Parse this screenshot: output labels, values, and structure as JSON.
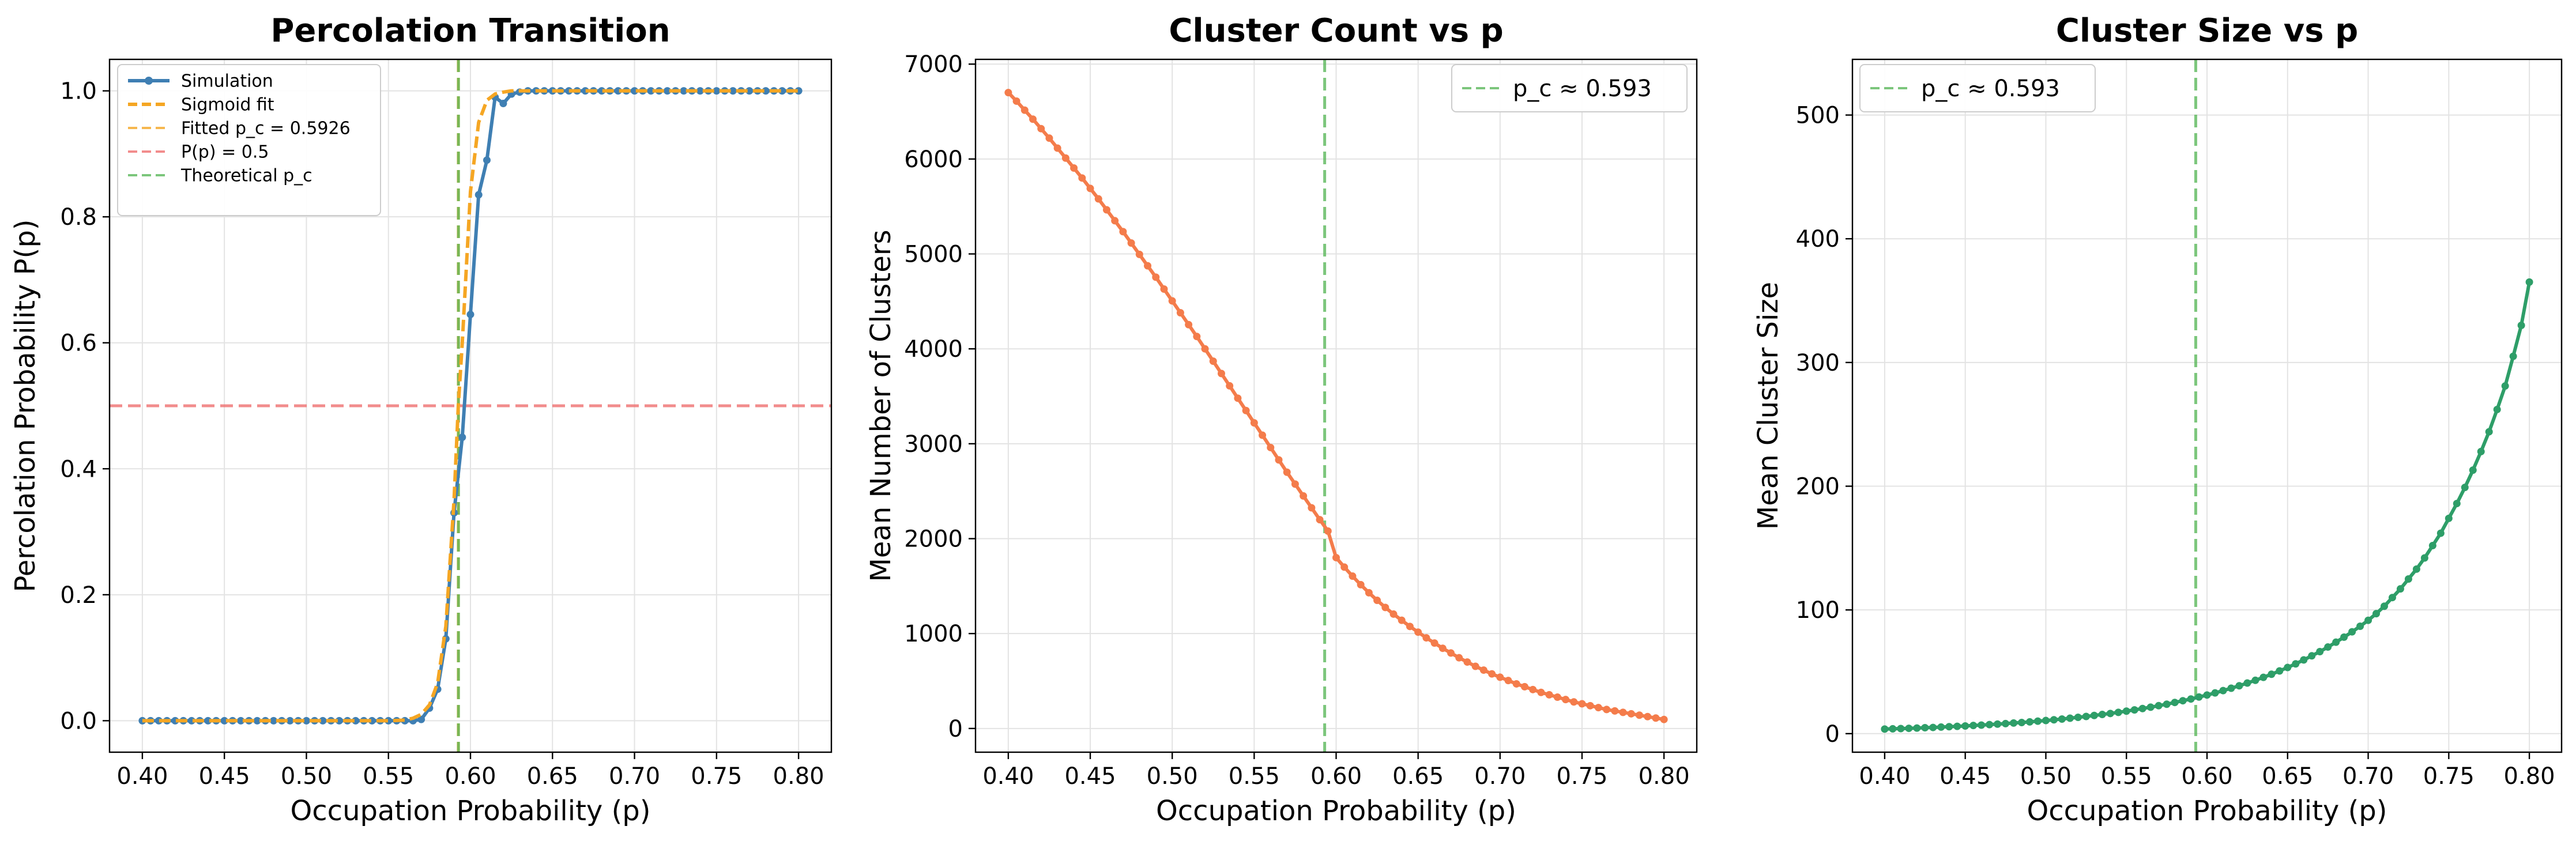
{
  "chart_data": [
    {
      "type": "line",
      "title": "Percolation Transition",
      "xlabel": "Occupation Probability (p)",
      "ylabel": "Percolation Probability P(p)",
      "xlim": [
        0.38,
        0.82
      ],
      "ylim": [
        -0.05,
        1.05
      ],
      "xticks": [
        "0.40",
        "0.45",
        "0.50",
        "0.55",
        "0.60",
        "0.65",
        "0.70",
        "0.75",
        "0.80"
      ],
      "yticks": [
        "0.0",
        "0.2",
        "0.4",
        "0.6",
        "0.8",
        "1.0"
      ],
      "grid": true,
      "legend_position": "top-left",
      "series": [
        {
          "name": "Simulation",
          "color": "#3f7fb3",
          "style": "solid-markers",
          "x": [
            0.4,
            0.405,
            0.41,
            0.415,
            0.42,
            0.425,
            0.43,
            0.435,
            0.44,
            0.445,
            0.45,
            0.455,
            0.46,
            0.465,
            0.47,
            0.475,
            0.48,
            0.485,
            0.49,
            0.495,
            0.5,
            0.505,
            0.51,
            0.515,
            0.52,
            0.525,
            0.53,
            0.535,
            0.54,
            0.545,
            0.55,
            0.555,
            0.56,
            0.565,
            0.57,
            0.575,
            0.58,
            0.585,
            0.59,
            0.595,
            0.6,
            0.605,
            0.61,
            0.615,
            0.62,
            0.625,
            0.63,
            0.635,
            0.64,
            0.645,
            0.65,
            0.655,
            0.66,
            0.665,
            0.67,
            0.675,
            0.68,
            0.685,
            0.69,
            0.695,
            0.7,
            0.705,
            0.71,
            0.715,
            0.72,
            0.725,
            0.73,
            0.735,
            0.74,
            0.745,
            0.75,
            0.755,
            0.76,
            0.765,
            0.77,
            0.775,
            0.78,
            0.785,
            0.79,
            0.795,
            0.8
          ],
          "y": [
            0,
            0,
            0,
            0,
            0,
            0,
            0,
            0,
            0,
            0,
            0,
            0,
            0,
            0,
            0,
            0,
            0,
            0,
            0,
            0,
            0,
            0,
            0,
            0,
            0,
            0,
            0,
            0,
            0,
            0,
            0,
            0,
            0,
            0,
            0.002,
            0.02,
            0.05,
            0.13,
            0.33,
            0.45,
            0.645,
            0.835,
            0.89,
            0.99,
            0.98,
            0.995,
            0.998,
            1,
            1,
            1,
            1,
            1,
            1,
            1,
            1,
            1,
            1,
            1,
            1,
            1,
            1,
            1,
            1,
            1,
            1,
            1,
            1,
            1,
            1,
            1,
            1,
            1,
            1,
            1,
            1,
            1,
            1,
            1,
            1,
            1,
            1
          ]
        },
        {
          "name": "Sigmoid fit",
          "color": "#f5a623",
          "style": "dashed",
          "x": [
            0.4,
            0.55,
            0.56,
            0.565,
            0.57,
            0.575,
            0.58,
            0.585,
            0.59,
            0.5926,
            0.595,
            0.6,
            0.605,
            0.61,
            0.615,
            0.62,
            0.625,
            0.63,
            0.64,
            0.65,
            0.8
          ],
          "y": [
            0,
            0,
            0.001,
            0.004,
            0.01,
            0.025,
            0.06,
            0.15,
            0.35,
            0.5,
            0.6,
            0.84,
            0.95,
            0.985,
            0.995,
            0.998,
            1,
            1,
            1,
            1,
            1
          ]
        }
      ],
      "reference_lines": [
        {
          "name": "Fitted p_c = 0.5926",
          "orientation": "vertical",
          "value": 0.5926,
          "color": "#f5a623"
        },
        {
          "name": "P(p) = 0.5",
          "orientation": "horizontal",
          "value": 0.5,
          "color": "#f07070"
        },
        {
          "name": "Theoretical p_c",
          "orientation": "vertical",
          "value": 0.5927,
          "color": "#5cb85c"
        }
      ]
    },
    {
      "type": "line",
      "title": "Cluster Count vs p",
      "xlabel": "Occupation Probability (p)",
      "ylabel": "Mean Number of Clusters",
      "xlim": [
        0.38,
        0.82
      ],
      "ylim": [
        -250,
        7050
      ],
      "xticks": [
        "0.40",
        "0.45",
        "0.50",
        "0.55",
        "0.60",
        "0.65",
        "0.70",
        "0.75",
        "0.80"
      ],
      "yticks": [
        "0",
        "1000",
        "2000",
        "3000",
        "4000",
        "5000",
        "6000",
        "7000"
      ],
      "grid": true,
      "legend_position": "top-right",
      "series": [
        {
          "name": "",
          "color": "#f47c4b",
          "style": "solid-markers",
          "x": [
            0.4,
            0.405,
            0.41,
            0.415,
            0.42,
            0.425,
            0.43,
            0.435,
            0.44,
            0.445,
            0.45,
            0.455,
            0.46,
            0.465,
            0.47,
            0.475,
            0.48,
            0.485,
            0.49,
            0.495,
            0.5,
            0.505,
            0.51,
            0.515,
            0.52,
            0.525,
            0.53,
            0.535,
            0.54,
            0.545,
            0.55,
            0.555,
            0.56,
            0.565,
            0.57,
            0.575,
            0.58,
            0.585,
            0.59,
            0.595,
            0.6,
            0.605,
            0.61,
            0.615,
            0.62,
            0.625,
            0.63,
            0.635,
            0.64,
            0.645,
            0.65,
            0.655,
            0.66,
            0.665,
            0.67,
            0.675,
            0.68,
            0.685,
            0.69,
            0.695,
            0.7,
            0.705,
            0.71,
            0.715,
            0.72,
            0.725,
            0.73,
            0.735,
            0.74,
            0.745,
            0.75,
            0.755,
            0.76,
            0.765,
            0.77,
            0.775,
            0.78,
            0.785,
            0.79,
            0.795,
            0.8
          ],
          "y": [
            6700,
            6610,
            6515,
            6420,
            6320,
            6220,
            6115,
            6010,
            5905,
            5800,
            5690,
            5580,
            5465,
            5350,
            5235,
            5115,
            4995,
            4875,
            4755,
            4630,
            4505,
            4380,
            4255,
            4130,
            4000,
            3870,
            3740,
            3610,
            3480,
            3350,
            3220,
            3090,
            2960,
            2830,
            2700,
            2575,
            2450,
            2325,
            2200,
            2080,
            1800,
            1700,
            1605,
            1515,
            1430,
            1350,
            1275,
            1205,
            1140,
            1075,
            1015,
            955,
            900,
            845,
            795,
            745,
            700,
            655,
            615,
            575,
            540,
            505,
            470,
            440,
            410,
            380,
            355,
            330,
            305,
            280,
            260,
            240,
            220,
            200,
            185,
            170,
            155,
            140,
            125,
            110,
            95
          ]
        }
      ],
      "reference_lines": [
        {
          "name": "p_c ≈ 0.593",
          "orientation": "vertical",
          "value": 0.593,
          "color": "#5cb85c"
        }
      ]
    },
    {
      "type": "line",
      "title": "Cluster Size vs p",
      "xlabel": "Occupation Probability (p)",
      "ylabel": "Mean Cluster Size",
      "xlim": [
        0.38,
        0.82
      ],
      "ylim": [
        -15,
        545
      ],
      "xticks": [
        "0.40",
        "0.45",
        "0.50",
        "0.55",
        "0.60",
        "0.65",
        "0.70",
        "0.75",
        "0.80"
      ],
      "yticks": [
        "0",
        "100",
        "200",
        "300",
        "400",
        "500"
      ],
      "grid": true,
      "legend_position": "top-left",
      "series": [
        {
          "name": "",
          "color": "#2e9e68",
          "style": "solid-markers",
          "x": [
            0.4,
            0.405,
            0.41,
            0.415,
            0.42,
            0.425,
            0.43,
            0.435,
            0.44,
            0.445,
            0.45,
            0.455,
            0.46,
            0.465,
            0.47,
            0.475,
            0.48,
            0.485,
            0.49,
            0.495,
            0.5,
            0.505,
            0.51,
            0.515,
            0.52,
            0.525,
            0.53,
            0.535,
            0.54,
            0.545,
            0.55,
            0.555,
            0.56,
            0.565,
            0.57,
            0.575,
            0.58,
            0.585,
            0.59,
            0.595,
            0.6,
            0.605,
            0.61,
            0.615,
            0.62,
            0.625,
            0.63,
            0.635,
            0.64,
            0.645,
            0.65,
            0.655,
            0.66,
            0.665,
            0.67,
            0.675,
            0.68,
            0.685,
            0.69,
            0.695,
            0.7,
            0.705,
            0.71,
            0.715,
            0.72,
            0.725,
            0.73,
            0.735,
            0.74,
            0.745,
            0.75,
            0.755,
            0.76,
            0.765,
            0.77,
            0.775,
            0.78,
            0.785,
            0.79,
            0.795,
            0.8
          ],
          "y": [
            3.7,
            3.9,
            4.1,
            4.3,
            4.5,
            4.8,
            5.0,
            5.3,
            5.6,
            5.9,
            6.2,
            6.6,
            6.9,
            7.3,
            7.7,
            8.1,
            8.6,
            9.0,
            9.5,
            10.1,
            10.6,
            11.2,
            11.8,
            12.5,
            13.2,
            13.9,
            14.7,
            15.5,
            16.3,
            17.2,
            18.2,
            19.2,
            20.3,
            21.4,
            22.6,
            23.8,
            25.2,
            26.6,
            28.0,
            29.6,
            31.2,
            32.9,
            34.8,
            36.7,
            38.7,
            40.9,
            43.1,
            45.5,
            48.0,
            50.7,
            53.5,
            56.4,
            59.6,
            62.9,
            66.3,
            70.0,
            73.9,
            78.0,
            82.3,
            86.8,
            91.6,
            97.0,
            103,
            110,
            117,
            125,
            133,
            142,
            152,
            162,
            174,
            186,
            199,
            213,
            228,
            244,
            262,
            281,
            305,
            330,
            365
          ]
        }
      ],
      "reference_lines": [
        {
          "name": "p_c ≈ 0.593",
          "orientation": "vertical",
          "value": 0.593,
          "color": "#5cb85c"
        }
      ]
    }
  ]
}
